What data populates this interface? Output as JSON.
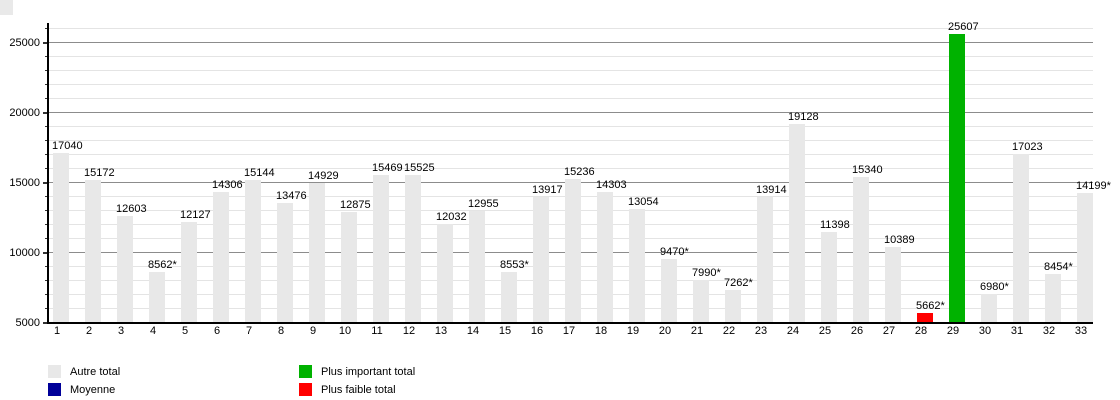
{
  "chart_data": {
    "type": "bar",
    "title": "",
    "xlabel": "",
    "ylabel": "",
    "categories": [
      "1",
      "2",
      "3",
      "4",
      "5",
      "6",
      "7",
      "8",
      "9",
      "10",
      "11",
      "12",
      "13",
      "14",
      "15",
      "16",
      "17",
      "18",
      "19",
      "20",
      "21",
      "22",
      "23",
      "24",
      "25",
      "26",
      "27",
      "28",
      "29",
      "30",
      "31",
      "32",
      "33"
    ],
    "values": [
      17040,
      15172,
      12603,
      8562,
      12127,
      14306,
      15144,
      13476,
      14929,
      12875,
      15469,
      15525,
      12032,
      12955,
      8553,
      13917,
      15236,
      14303,
      13054,
      9470,
      7990,
      7262,
      13914,
      19128,
      11398,
      15340,
      10389,
      5662,
      25607,
      6980,
      17023,
      8454,
      14199
    ],
    "bar_labels": [
      "17040",
      "15172",
      "12603",
      "8562*",
      "12127",
      "14306",
      "15144",
      "13476",
      "14929",
      "12875",
      "15469",
      "15525",
      "12032",
      "12955",
      "8553*",
      "13917",
      "15236",
      "14303",
      "13054",
      "9470*",
      "7990*",
      "7262*",
      "13914",
      "19128",
      "11398",
      "15340",
      "10389",
      "5662*",
      "25607",
      "6980*",
      "17023",
      "8454*",
      "14199*"
    ],
    "highlight": {
      "max": {
        "category": "29",
        "value": 25607,
        "label": "25607"
      },
      "min": {
        "category": "28",
        "value": 5662,
        "label": "5662*"
      }
    },
    "ylim": [
      5000,
      26357
    ],
    "yticks": [
      5000,
      10000,
      15000,
      20000,
      25000
    ],
    "ytick_labels": [
      "5000",
      "10000",
      "15000",
      "20000",
      "25000"
    ],
    "minor_grid_step": 1000,
    "grid": "major+minor horizontal",
    "legend_position": "bottom",
    "legend": [
      {
        "label": "Autre total",
        "color": "#e8e8e8"
      },
      {
        "label": "Moyenne",
        "color": "#000099"
      },
      {
        "label": "Plus important total",
        "color": "#00b200"
      },
      {
        "label": "Plus faible total",
        "color": "#ff0000"
      }
    ],
    "colors": {
      "default_bar": "#e8e8e8",
      "max_bar": "#00b200",
      "min_bar": "#ff0000",
      "major_grid": "#8c8c8c",
      "minor_grid": "#e4e4e4",
      "axis": "#000000",
      "text": "#000000"
    }
  }
}
